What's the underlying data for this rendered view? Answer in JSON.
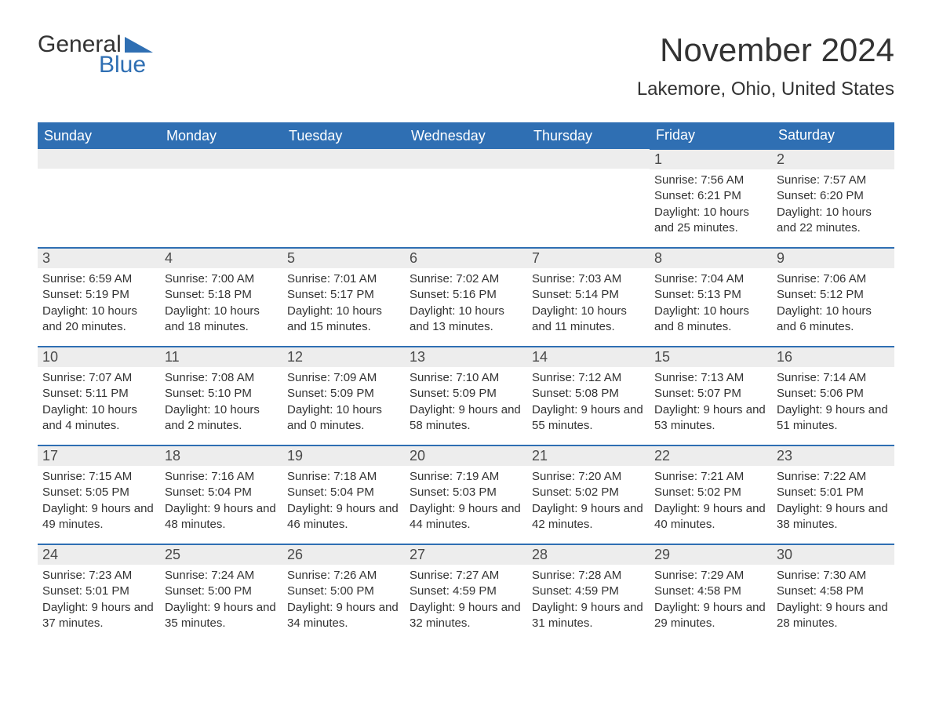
{
  "logo": {
    "text1": "General",
    "text2": "Blue",
    "shape_color": "#2f6fb3"
  },
  "title": "November 2024",
  "location": "Lakemore, Ohio, United States",
  "colors": {
    "header_bg": "#2f6fb3",
    "header_text": "#ffffff",
    "daynum_bg": "#ededed",
    "border": "#2f6fb3",
    "text": "#333333"
  },
  "day_headers": [
    "Sunday",
    "Monday",
    "Tuesday",
    "Wednesday",
    "Thursday",
    "Friday",
    "Saturday"
  ],
  "weeks": [
    [
      null,
      null,
      null,
      null,
      null,
      {
        "n": "1",
        "sunrise": "7:56 AM",
        "sunset": "6:21 PM",
        "daylight": "10 hours and 25 minutes."
      },
      {
        "n": "2",
        "sunrise": "7:57 AM",
        "sunset": "6:20 PM",
        "daylight": "10 hours and 22 minutes."
      }
    ],
    [
      {
        "n": "3",
        "sunrise": "6:59 AM",
        "sunset": "5:19 PM",
        "daylight": "10 hours and 20 minutes."
      },
      {
        "n": "4",
        "sunrise": "7:00 AM",
        "sunset": "5:18 PM",
        "daylight": "10 hours and 18 minutes."
      },
      {
        "n": "5",
        "sunrise": "7:01 AM",
        "sunset": "5:17 PM",
        "daylight": "10 hours and 15 minutes."
      },
      {
        "n": "6",
        "sunrise": "7:02 AM",
        "sunset": "5:16 PM",
        "daylight": "10 hours and 13 minutes."
      },
      {
        "n": "7",
        "sunrise": "7:03 AM",
        "sunset": "5:14 PM",
        "daylight": "10 hours and 11 minutes."
      },
      {
        "n": "8",
        "sunrise": "7:04 AM",
        "sunset": "5:13 PM",
        "daylight": "10 hours and 8 minutes."
      },
      {
        "n": "9",
        "sunrise": "7:06 AM",
        "sunset": "5:12 PM",
        "daylight": "10 hours and 6 minutes."
      }
    ],
    [
      {
        "n": "10",
        "sunrise": "7:07 AM",
        "sunset": "5:11 PM",
        "daylight": "10 hours and 4 minutes."
      },
      {
        "n": "11",
        "sunrise": "7:08 AM",
        "sunset": "5:10 PM",
        "daylight": "10 hours and 2 minutes."
      },
      {
        "n": "12",
        "sunrise": "7:09 AM",
        "sunset": "5:09 PM",
        "daylight": "10 hours and 0 minutes."
      },
      {
        "n": "13",
        "sunrise": "7:10 AM",
        "sunset": "5:09 PM",
        "daylight": "9 hours and 58 minutes."
      },
      {
        "n": "14",
        "sunrise": "7:12 AM",
        "sunset": "5:08 PM",
        "daylight": "9 hours and 55 minutes."
      },
      {
        "n": "15",
        "sunrise": "7:13 AM",
        "sunset": "5:07 PM",
        "daylight": "9 hours and 53 minutes."
      },
      {
        "n": "16",
        "sunrise": "7:14 AM",
        "sunset": "5:06 PM",
        "daylight": "9 hours and 51 minutes."
      }
    ],
    [
      {
        "n": "17",
        "sunrise": "7:15 AM",
        "sunset": "5:05 PM",
        "daylight": "9 hours and 49 minutes."
      },
      {
        "n": "18",
        "sunrise": "7:16 AM",
        "sunset": "5:04 PM",
        "daylight": "9 hours and 48 minutes."
      },
      {
        "n": "19",
        "sunrise": "7:18 AM",
        "sunset": "5:04 PM",
        "daylight": "9 hours and 46 minutes."
      },
      {
        "n": "20",
        "sunrise": "7:19 AM",
        "sunset": "5:03 PM",
        "daylight": "9 hours and 44 minutes."
      },
      {
        "n": "21",
        "sunrise": "7:20 AM",
        "sunset": "5:02 PM",
        "daylight": "9 hours and 42 minutes."
      },
      {
        "n": "22",
        "sunrise": "7:21 AM",
        "sunset": "5:02 PM",
        "daylight": "9 hours and 40 minutes."
      },
      {
        "n": "23",
        "sunrise": "7:22 AM",
        "sunset": "5:01 PM",
        "daylight": "9 hours and 38 minutes."
      }
    ],
    [
      {
        "n": "24",
        "sunrise": "7:23 AM",
        "sunset": "5:01 PM",
        "daylight": "9 hours and 37 minutes."
      },
      {
        "n": "25",
        "sunrise": "7:24 AM",
        "sunset": "5:00 PM",
        "daylight": "9 hours and 35 minutes."
      },
      {
        "n": "26",
        "sunrise": "7:26 AM",
        "sunset": "5:00 PM",
        "daylight": "9 hours and 34 minutes."
      },
      {
        "n": "27",
        "sunrise": "7:27 AM",
        "sunset": "4:59 PM",
        "daylight": "9 hours and 32 minutes."
      },
      {
        "n": "28",
        "sunrise": "7:28 AM",
        "sunset": "4:59 PM",
        "daylight": "9 hours and 31 minutes."
      },
      {
        "n": "29",
        "sunrise": "7:29 AM",
        "sunset": "4:58 PM",
        "daylight": "9 hours and 29 minutes."
      },
      {
        "n": "30",
        "sunrise": "7:30 AM",
        "sunset": "4:58 PM",
        "daylight": "9 hours and 28 minutes."
      }
    ]
  ],
  "labels": {
    "sunrise": "Sunrise: ",
    "sunset": "Sunset: ",
    "daylight": "Daylight: "
  }
}
